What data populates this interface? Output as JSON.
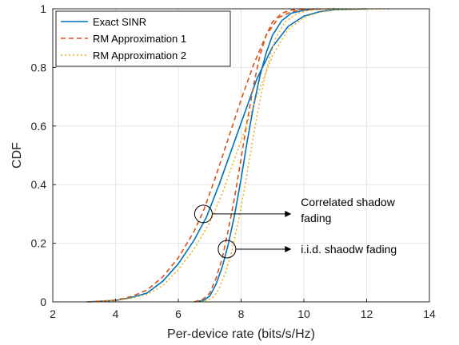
{
  "chart_data": {
    "type": "line",
    "title": "",
    "xlabel": "Per-device rate (bits/s/Hz)",
    "ylabel": "CDF",
    "xlim": [
      2,
      14
    ],
    "ylim": [
      0,
      1
    ],
    "xticks": [
      2,
      4,
      6,
      8,
      10,
      12,
      14
    ],
    "yticks": [
      0,
      0.2,
      0.4,
      0.6,
      0.8,
      1
    ],
    "grid": true,
    "legend_position": "top-left",
    "series": [
      {
        "name": "Exact SINR",
        "color": "#0072BD",
        "style": "solid",
        "curves": [
          {
            "group": "Correlated shadow fading",
            "points": [
              [
                3.1,
                0
              ],
              [
                4,
                0.005
              ],
              [
                4.5,
                0.015
              ],
              [
                5,
                0.03
              ],
              [
                5.5,
                0.07
              ],
              [
                6,
                0.13
              ],
              [
                6.5,
                0.21
              ],
              [
                6.9,
                0.29
              ],
              [
                7.3,
                0.4
              ],
              [
                7.7,
                0.52
              ],
              [
                8.1,
                0.64
              ],
              [
                8.5,
                0.76
              ],
              [
                9,
                0.87
              ],
              [
                9.5,
                0.94
              ],
              [
                10,
                0.975
              ],
              [
                10.5,
                0.99
              ],
              [
                11,
                0.997
              ],
              [
                12,
                1
              ]
            ]
          },
          {
            "group": "i.i.d. shadow fading",
            "points": [
              [
                6.5,
                0
              ],
              [
                6.8,
                0.005
              ],
              [
                7,
                0.02
              ],
              [
                7.2,
                0.06
              ],
              [
                7.4,
                0.12
              ],
              [
                7.6,
                0.2
              ],
              [
                7.8,
                0.3
              ],
              [
                8,
                0.42
              ],
              [
                8.2,
                0.55
              ],
              [
                8.4,
                0.67
              ],
              [
                8.6,
                0.77
              ],
              [
                8.8,
                0.85
              ],
              [
                9,
                0.91
              ],
              [
                9.3,
                0.96
              ],
              [
                9.6,
                0.985
              ],
              [
                10,
                0.995
              ],
              [
                10.5,
                1
              ]
            ]
          }
        ]
      },
      {
        "name": "RM Approximation 1",
        "color": "#D95319",
        "style": "dashed",
        "curves": [
          {
            "group": "Correlated shadow fading",
            "points": [
              [
                3.1,
                0
              ],
              [
                4,
                0.006
              ],
              [
                4.5,
                0.018
              ],
              [
                5,
                0.04
              ],
              [
                5.5,
                0.085
              ],
              [
                6,
                0.15
              ],
              [
                6.5,
                0.24
              ],
              [
                6.8,
                0.31
              ],
              [
                7.2,
                0.43
              ],
              [
                7.6,
                0.56
              ],
              [
                8,
                0.69
              ],
              [
                8.4,
                0.81
              ],
              [
                8.8,
                0.91
              ],
              [
                9.2,
                0.97
              ],
              [
                9.6,
                0.99
              ],
              [
                10,
                0.997
              ],
              [
                11,
                1
              ]
            ]
          },
          {
            "group": "i.i.d. shadow fading",
            "points": [
              [
                6.5,
                0
              ],
              [
                6.8,
                0.01
              ],
              [
                7,
                0.03
              ],
              [
                7.2,
                0.08
              ],
              [
                7.4,
                0.15
              ],
              [
                7.6,
                0.25
              ],
              [
                7.8,
                0.36
              ],
              [
                8,
                0.49
              ],
              [
                8.2,
                0.62
              ],
              [
                8.4,
                0.74
              ],
              [
                8.6,
                0.84
              ],
              [
                8.8,
                0.91
              ],
              [
                9,
                0.955
              ],
              [
                9.3,
                0.985
              ],
              [
                9.6,
                0.996
              ],
              [
                10,
                1
              ]
            ]
          }
        ]
      },
      {
        "name": "RM Approximation 2",
        "color": "#EDB120",
        "style": "dotted",
        "curves": [
          {
            "group": "Correlated shadow fading",
            "points": [
              [
                3.2,
                0
              ],
              [
                4,
                0.004
              ],
              [
                4.5,
                0.012
              ],
              [
                5,
                0.025
              ],
              [
                5.5,
                0.055
              ],
              [
                6,
                0.11
              ],
              [
                6.5,
                0.18
              ],
              [
                7,
                0.27
              ],
              [
                7.4,
                0.37
              ],
              [
                7.8,
                0.49
              ],
              [
                8.2,
                0.61
              ],
              [
                8.6,
                0.73
              ],
              [
                9,
                0.84
              ],
              [
                9.5,
                0.93
              ],
              [
                10,
                0.97
              ],
              [
                10.5,
                0.988
              ],
              [
                11,
                0.996
              ],
              [
                12.7,
                1
              ]
            ]
          },
          {
            "group": "i.i.d. shadow fading",
            "points": [
              [
                6.6,
                0
              ],
              [
                6.9,
                0.005
              ],
              [
                7.1,
                0.015
              ],
              [
                7.3,
                0.045
              ],
              [
                7.5,
                0.1
              ],
              [
                7.7,
                0.17
              ],
              [
                7.9,
                0.27
              ],
              [
                8.1,
                0.38
              ],
              [
                8.3,
                0.51
              ],
              [
                8.5,
                0.63
              ],
              [
                8.7,
                0.74
              ],
              [
                8.9,
                0.83
              ],
              [
                9.1,
                0.9
              ],
              [
                9.4,
                0.955
              ],
              [
                9.8,
                0.985
              ],
              [
                10.3,
                0.997
              ],
              [
                11,
                1
              ]
            ]
          }
        ]
      }
    ],
    "annotations": [
      {
        "text_lines": [
          "Correlated shadow",
          "fading"
        ],
        "circle_at": [
          6.8,
          0.3
        ],
        "arrow_to": [
          9.6,
          0.3
        ]
      },
      {
        "text_lines": [
          "i.i.d. shaodw fading"
        ],
        "circle_at": [
          7.55,
          0.18
        ],
        "arrow_to": [
          9.6,
          0.18
        ]
      }
    ]
  }
}
